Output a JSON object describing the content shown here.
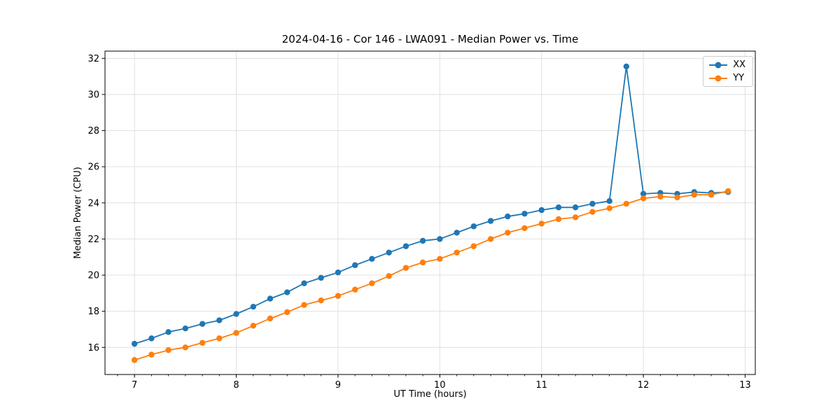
{
  "chart_data": {
    "type": "line",
    "title": "2024-04-16 - Cor 146 - LWA091 - Median Power vs. Time",
    "xlabel": "UT Time (hours)",
    "ylabel": "Median Power (CPU)",
    "xlim": [
      6.71,
      13.1
    ],
    "ylim": [
      14.5,
      32.4
    ],
    "x_ticks": [
      7,
      8,
      9,
      10,
      11,
      12,
      13
    ],
    "x_minor_step": 0.166667,
    "y_ticks": [
      16,
      18,
      20,
      22,
      24,
      26,
      28,
      30,
      32
    ],
    "grid": true,
    "legend_position": "top-right",
    "x": [
      7.0,
      7.167,
      7.333,
      7.5,
      7.667,
      7.833,
      8.0,
      8.167,
      8.333,
      8.5,
      8.667,
      8.833,
      9.0,
      9.167,
      9.333,
      9.5,
      9.667,
      9.833,
      10.0,
      10.167,
      10.333,
      10.5,
      10.667,
      10.833,
      11.0,
      11.167,
      11.333,
      11.5,
      11.667,
      11.833,
      12.0,
      12.167,
      12.333,
      12.5,
      12.667,
      12.833
    ],
    "series": [
      {
        "name": "XX",
        "color": "#1f77b4",
        "values": [
          16.2,
          16.5,
          16.85,
          17.05,
          17.3,
          17.5,
          17.85,
          18.25,
          18.7,
          19.05,
          19.55,
          19.85,
          20.15,
          20.55,
          20.9,
          21.25,
          21.6,
          21.9,
          22.0,
          22.35,
          22.7,
          23.0,
          23.25,
          23.4,
          23.6,
          23.75,
          23.75,
          23.95,
          24.1,
          31.55,
          24.5,
          24.55,
          24.5,
          24.6,
          24.55,
          24.6
        ]
      },
      {
        "name": "YY",
        "color": "#ff7f0e",
        "values": [
          15.3,
          15.6,
          15.85,
          16.0,
          16.25,
          16.5,
          16.8,
          17.2,
          17.6,
          17.95,
          18.35,
          18.6,
          18.85,
          19.2,
          19.55,
          19.95,
          20.4,
          20.7,
          20.9,
          21.25,
          21.6,
          22.0,
          22.35,
          22.6,
          22.85,
          23.1,
          23.2,
          23.5,
          23.7,
          23.95,
          24.25,
          24.35,
          24.3,
          24.45,
          24.45,
          24.65
        ]
      }
    ],
    "style": {
      "grid_color": "#e0e0e0",
      "spine_color": "#000000",
      "background": "#ffffff",
      "marker_radius": 4.2,
      "line_width": 1.8
    }
  }
}
